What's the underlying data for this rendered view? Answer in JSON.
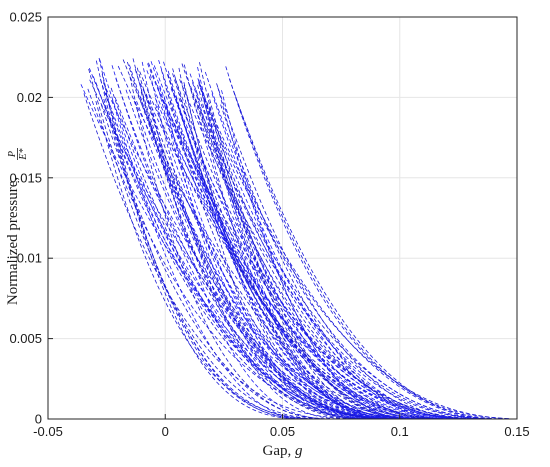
{
  "chart_data": {
    "type": "line",
    "title": "",
    "xlabel": "Gap, ",
    "xlabel_symbol": "g",
    "ylabel": "Normalized pressure, ",
    "ylabel_fraction": {
      "numerator": "P",
      "denominator": "E*"
    },
    "xlim": [
      -0.05,
      0.15
    ],
    "ylim": [
      0,
      0.025
    ],
    "xticks": [
      "-0.05",
      "0",
      "0.05",
      "0.1",
      "0.15"
    ],
    "yticks": [
      "0",
      "0.005",
      "0.01",
      "0.015",
      "0.02",
      "0.025"
    ],
    "grid": true,
    "line_color": "#1a1aff",
    "line_style": "dashed",
    "series_count": 100,
    "series_model": "each series: x from ~-0.035 to ~0.145, y falls from ~0.021 to 0 (convex decay)",
    "series": [
      {
        "x": [
          -0.036,
          -0.01,
          0.02,
          0.05,
          0.08,
          0.11,
          0.14
        ],
        "y": [
          0.0213,
          0.0146,
          0.0081,
          0.0035,
          0.0009,
          0.0001,
          0.0
        ]
      },
      {
        "x": [
          -0.01,
          0.015,
          0.04,
          0.07,
          0.1,
          0.14
        ],
        "y": [
          0.0212,
          0.0144,
          0.0086,
          0.0034,
          0.0006,
          0.0
        ]
      },
      {
        "x": [
          0.012,
          0.035,
          0.06,
          0.085,
          0.11,
          0.14
        ],
        "y": [
          0.0222,
          0.0151,
          0.0085,
          0.0036,
          0.0008,
          0.0
        ]
      }
    ]
  }
}
